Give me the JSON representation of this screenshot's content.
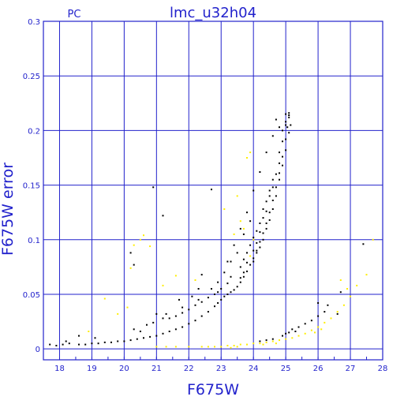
{
  "chart_data": {
    "type": "scatter",
    "title": "lmc_u32h04",
    "corner_label": "PC",
    "xlabel": "F675W",
    "ylabel": "F675W error",
    "xlim": [
      17.5,
      28
    ],
    "ylim": [
      -0.01,
      0.3
    ],
    "xticks": [
      "18",
      "19",
      "20",
      "21",
      "22",
      "23",
      "24",
      "25",
      "26",
      "27",
      "28"
    ],
    "yticks": [
      "0",
      "0.05",
      "0.1",
      "0.15",
      "0.2",
      "0.25",
      "0.3"
    ],
    "grid": true,
    "colors": {
      "axes": "#2222cc",
      "grid": "#2222cc",
      "black_points": "#000000",
      "yellow_points": "#ffee00"
    },
    "series": [
      {
        "color": "black",
        "points": [
          [
            17.7,
            0.004
          ],
          [
            17.9,
            0.003
          ],
          [
            18.1,
            0.004
          ],
          [
            18.3,
            0.005
          ],
          [
            18.6,
            0.004
          ],
          [
            18.8,
            0.004
          ],
          [
            19.0,
            0.005
          ],
          [
            19.2,
            0.005
          ],
          [
            19.4,
            0.006
          ],
          [
            19.6,
            0.006
          ],
          [
            19.8,
            0.007
          ],
          [
            20.0,
            0.007
          ],
          [
            20.2,
            0.008
          ],
          [
            20.4,
            0.009
          ],
          [
            20.6,
            0.01
          ],
          [
            20.8,
            0.011
          ],
          [
            21.0,
            0.012
          ],
          [
            21.2,
            0.014
          ],
          [
            21.4,
            0.016
          ],
          [
            21.6,
            0.018
          ],
          [
            21.8,
            0.02
          ],
          [
            22.0,
            0.023
          ],
          [
            22.2,
            0.026
          ],
          [
            22.4,
            0.03
          ],
          [
            22.6,
            0.034
          ],
          [
            22.8,
            0.039
          ],
          [
            22.9,
            0.042
          ],
          [
            23.0,
            0.045
          ],
          [
            23.1,
            0.048
          ],
          [
            23.2,
            0.05
          ],
          [
            23.3,
            0.052
          ],
          [
            23.4,
            0.054
          ],
          [
            23.5,
            0.057
          ],
          [
            23.6,
            0.061
          ],
          [
            23.7,
            0.066
          ],
          [
            23.8,
            0.071
          ],
          [
            23.9,
            0.077
          ],
          [
            24.0,
            0.083
          ],
          [
            24.1,
            0.09
          ],
          [
            24.2,
            0.098
          ],
          [
            24.3,
            0.106
          ],
          [
            24.4,
            0.115
          ],
          [
            24.5,
            0.125
          ],
          [
            24.6,
            0.136
          ],
          [
            24.7,
            0.148
          ],
          [
            24.8,
            0.161
          ],
          [
            24.9,
            0.176
          ],
          [
            25.0,
            0.192
          ],
          [
            25.05,
            0.203
          ],
          [
            25.1,
            0.214
          ],
          [
            23.6,
            0.065
          ],
          [
            23.7,
            0.07
          ],
          [
            23.8,
            0.079
          ],
          [
            24.0,
            0.09
          ],
          [
            24.1,
            0.097
          ],
          [
            24.2,
            0.107
          ],
          [
            24.4,
            0.126
          ],
          [
            24.6,
            0.148
          ],
          [
            24.8,
            0.17
          ],
          [
            25.0,
            0.205
          ],
          [
            25.1,
            0.212
          ],
          [
            24.9,
            0.19
          ],
          [
            24.7,
            0.16
          ],
          [
            24.5,
            0.14
          ],
          [
            24.3,
            0.12
          ],
          [
            23.8,
            0.088
          ],
          [
            23.9,
            0.095
          ],
          [
            24.0,
            0.102
          ],
          [
            24.2,
            0.115
          ],
          [
            24.4,
            0.135
          ],
          [
            24.6,
            0.155
          ],
          [
            24.8,
            0.18
          ],
          [
            25.0,
            0.215
          ],
          [
            25.1,
            0.216
          ],
          [
            24.5,
            0.145
          ],
          [
            24.3,
            0.128
          ],
          [
            24.1,
            0.108
          ],
          [
            23.7,
            0.082
          ],
          [
            23.6,
            0.075
          ],
          [
            24.0,
            0.08
          ],
          [
            24.1,
            0.088
          ],
          [
            24.2,
            0.093
          ],
          [
            24.3,
            0.1
          ],
          [
            24.4,
            0.11
          ],
          [
            24.5,
            0.118
          ],
          [
            24.6,
            0.128
          ],
          [
            24.7,
            0.14
          ],
          [
            24.8,
            0.155
          ],
          [
            24.9,
            0.168
          ],
          [
            25.0,
            0.182
          ],
          [
            25.1,
            0.198
          ],
          [
            25.15,
            0.205
          ],
          [
            24.7,
            0.21
          ],
          [
            24.8,
            0.203
          ],
          [
            24.9,
            0.2
          ],
          [
            25.0,
            0.208
          ],
          [
            24.6,
            0.195
          ],
          [
            24.4,
            0.18
          ],
          [
            24.2,
            0.162
          ],
          [
            24.0,
            0.145
          ],
          [
            23.8,
            0.125
          ],
          [
            23.6,
            0.11
          ],
          [
            23.4,
            0.095
          ],
          [
            23.2,
            0.08
          ],
          [
            23.3,
            0.066
          ],
          [
            23.2,
            0.06
          ],
          [
            23.0,
            0.055
          ],
          [
            22.9,
            0.052
          ],
          [
            22.8,
            0.05
          ],
          [
            22.6,
            0.047
          ],
          [
            22.4,
            0.043
          ],
          [
            22.2,
            0.04
          ],
          [
            22.0,
            0.036
          ],
          [
            21.8,
            0.033
          ],
          [
            21.6,
            0.03
          ],
          [
            21.4,
            0.028
          ],
          [
            21.2,
            0.028
          ],
          [
            21.0,
            0.032
          ],
          [
            20.9,
            0.024
          ],
          [
            20.7,
            0.022
          ],
          [
            20.5,
            0.016
          ],
          [
            20.3,
            0.018
          ],
          [
            22.1,
            0.048
          ],
          [
            22.3,
            0.045
          ],
          [
            22.7,
            0.055
          ],
          [
            22.9,
            0.061
          ],
          [
            23.1,
            0.07
          ],
          [
            23.3,
            0.08
          ],
          [
            23.5,
            0.088
          ],
          [
            23.7,
            0.105
          ],
          [
            23.9,
            0.117
          ],
          [
            20.9,
            0.148
          ],
          [
            21.2,
            0.122
          ],
          [
            22.7,
            0.146
          ],
          [
            20.2,
            0.088
          ],
          [
            20.3,
            0.077
          ],
          [
            22.3,
            0.055
          ],
          [
            21.7,
            0.045
          ],
          [
            22.4,
            0.068
          ],
          [
            21.8,
            0.038
          ],
          [
            21.3,
            0.032
          ],
          [
            26.0,
            0.042
          ],
          [
            26.3,
            0.04
          ],
          [
            26.6,
            0.032
          ],
          [
            26.7,
            0.052
          ],
          [
            25.2,
            0.018
          ],
          [
            25.4,
            0.02
          ],
          [
            25.6,
            0.023
          ],
          [
            25.8,
            0.026
          ],
          [
            26.0,
            0.03
          ],
          [
            26.2,
            0.034
          ],
          [
            24.9,
            0.012
          ],
          [
            25.0,
            0.014
          ],
          [
            25.1,
            0.015
          ],
          [
            25.3,
            0.016
          ],
          [
            24.6,
            0.009
          ],
          [
            24.4,
            0.008
          ],
          [
            24.2,
            0.007
          ],
          [
            27.4,
            0.096
          ],
          [
            18.6,
            0.012
          ],
          [
            18.2,
            0.007
          ],
          [
            19.1,
            0.01
          ]
        ]
      },
      {
        "color": "yellow",
        "points": [
          [
            20.6,
            0.104
          ],
          [
            20.5,
            0.1
          ],
          [
            20.3,
            0.095
          ],
          [
            19.4,
            0.046
          ],
          [
            20.1,
            0.038
          ],
          [
            20.8,
            0.094
          ],
          [
            20.2,
            0.074
          ],
          [
            21.2,
            0.058
          ],
          [
            21.6,
            0.067
          ],
          [
            22.2,
            0.063
          ],
          [
            19.8,
            0.032
          ],
          [
            18.9,
            0.016
          ],
          [
            23.1,
            0.128
          ],
          [
            23.6,
            0.117
          ],
          [
            23.4,
            0.105
          ],
          [
            23.7,
            0.11
          ],
          [
            23.8,
            0.175
          ],
          [
            23.9,
            0.18
          ],
          [
            23.5,
            0.14
          ],
          [
            24.0,
            0.1
          ],
          [
            23.9,
            0.085
          ],
          [
            22.8,
            0.002
          ],
          [
            23.0,
            0.002
          ],
          [
            23.2,
            0.003
          ],
          [
            23.4,
            0.003
          ],
          [
            23.6,
            0.004
          ],
          [
            23.8,
            0.004
          ],
          [
            24.0,
            0.005
          ],
          [
            24.2,
            0.005
          ],
          [
            24.4,
            0.006
          ],
          [
            24.6,
            0.007
          ],
          [
            24.8,
            0.008
          ],
          [
            25.0,
            0.009
          ],
          [
            25.2,
            0.01
          ],
          [
            25.4,
            0.012
          ],
          [
            25.6,
            0.014
          ],
          [
            25.8,
            0.017
          ],
          [
            26.0,
            0.02
          ],
          [
            26.2,
            0.024
          ],
          [
            26.4,
            0.028
          ],
          [
            26.6,
            0.034
          ],
          [
            26.8,
            0.04
          ],
          [
            27.0,
            0.048
          ],
          [
            27.2,
            0.058
          ],
          [
            27.5,
            0.068
          ],
          [
            27.7,
            0.1
          ],
          [
            21.0,
            0.002
          ],
          [
            21.3,
            0.002
          ],
          [
            21.6,
            0.002
          ],
          [
            22.0,
            0.002
          ],
          [
            22.4,
            0.002
          ],
          [
            22.6,
            0.002
          ],
          [
            26.7,
            0.063
          ],
          [
            26.9,
            0.055
          ],
          [
            25.9,
            0.015
          ],
          [
            26.1,
            0.018
          ],
          [
            24.7,
            0.005
          ],
          [
            24.3,
            0.004
          ],
          [
            23.3,
            0.001
          ],
          [
            23.5,
            0.002
          ]
        ]
      }
    ]
  }
}
